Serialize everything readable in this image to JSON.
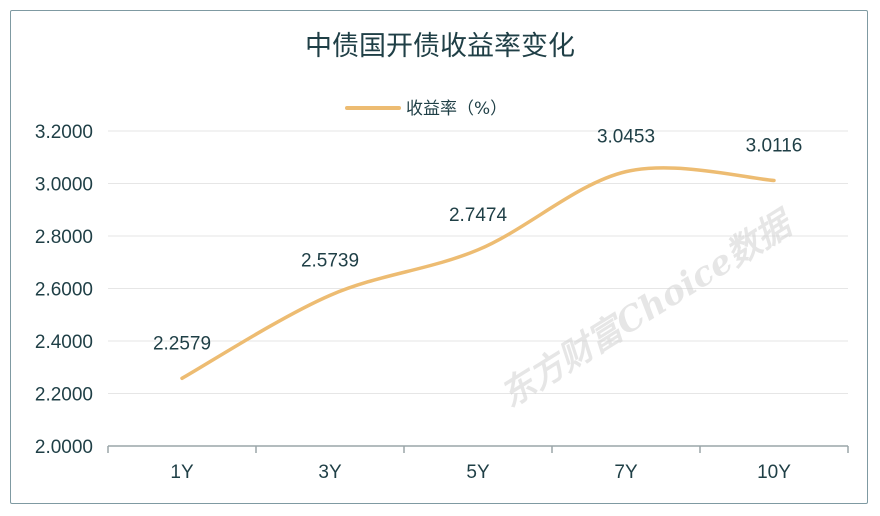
{
  "chart_data": {
    "type": "line",
    "title": "中债国开债收益率变化",
    "categories": [
      "1Y",
      "3Y",
      "5Y",
      "7Y",
      "10Y"
    ],
    "series": [
      {
        "name": "收益率（%）",
        "values": [
          2.2579,
          2.5739,
          2.7474,
          3.0453,
          3.0116
        ],
        "labels": [
          "2.2579",
          "2.5739",
          "2.7474",
          "3.0453",
          "3.0116"
        ],
        "color": "#edbc72"
      }
    ],
    "yticks": [
      "3.2000",
      "3.0000",
      "2.8000",
      "2.6000",
      "2.4000",
      "2.2000",
      "2.0000"
    ],
    "ylim": [
      2.0,
      3.2
    ],
    "grid": true,
    "legend_position": "top"
  },
  "watermark": "东方财富Choice数据"
}
